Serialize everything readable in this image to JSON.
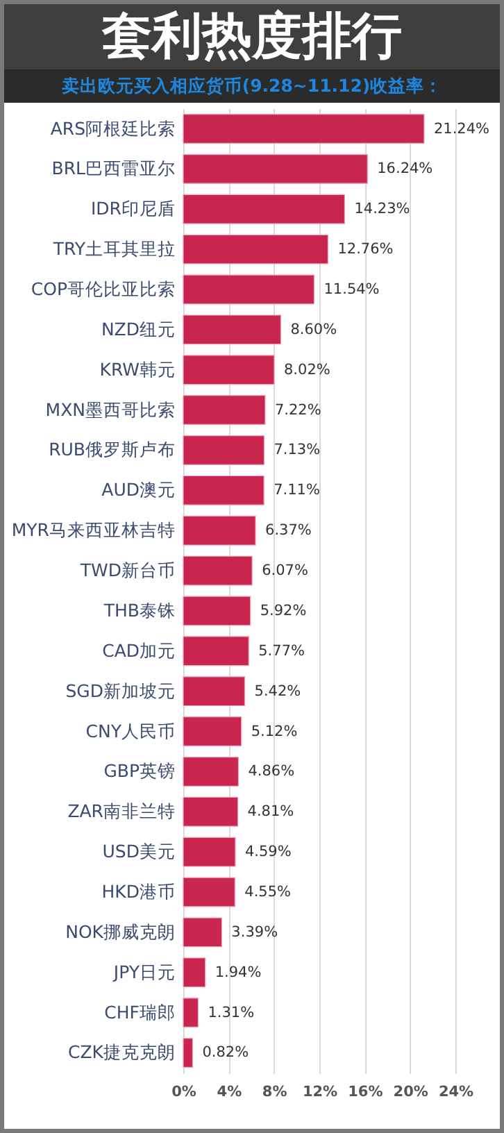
{
  "chart_data": {
    "type": "bar",
    "orientation": "horizontal",
    "title": "套利热度排行",
    "subtitle": "卖出欧元买入相应货币(9.28~11.12)收益率：",
    "categories": [
      "ARS阿根廷比索",
      "BRL巴西雷亚尔",
      "IDR印尼盾",
      "TRY土耳其里拉",
      "COP哥伦比亚比索",
      "NZD纽元",
      "KRW韩元",
      "MXN墨西哥比索",
      "RUB俄罗斯卢布",
      "AUD澳元",
      "MYR马来西亚林吉特",
      "TWD新台币",
      "THB泰铢",
      "CAD加元",
      "SGD新加坡元",
      "CNY人民币",
      "GBP英镑",
      "ZAR南非兰特",
      "USD美元",
      "HKD港币",
      "NOK挪威克朗",
      "JPY日元",
      "CHF瑞郎",
      "CZK捷克克朗"
    ],
    "values": [
      21.24,
      16.24,
      14.23,
      12.76,
      11.54,
      8.6,
      8.02,
      7.22,
      7.13,
      7.11,
      6.37,
      6.07,
      5.92,
      5.77,
      5.42,
      5.12,
      4.86,
      4.81,
      4.59,
      4.55,
      3.39,
      1.94,
      1.31,
      0.82
    ],
    "value_labels": [
      "21.24%",
      "16.24%",
      "14.23%",
      "12.76%",
      "11.54%",
      "8.60%",
      "8.02%",
      "7.22%",
      "7.13%",
      "7.11%",
      "6.37%",
      "6.07%",
      "5.92%",
      "5.77%",
      "5.42%",
      "5.12%",
      "4.86%",
      "4.81%",
      "4.59%",
      "4.55%",
      "3.39%",
      "1.94%",
      "1.31%",
      "0.82%"
    ],
    "color": "#c8254f",
    "xlim": [
      0,
      24
    ],
    "xticks": [
      {
        "value": 0,
        "label": "0%"
      },
      {
        "value": 4,
        "label": "4%"
      },
      {
        "value": 8,
        "label": "8%"
      },
      {
        "value": 12,
        "label": "12%"
      },
      {
        "value": 16,
        "label": "16%"
      },
      {
        "value": 20,
        "label": "20%"
      },
      {
        "value": 24,
        "label": "24%"
      }
    ],
    "grid": "x"
  }
}
